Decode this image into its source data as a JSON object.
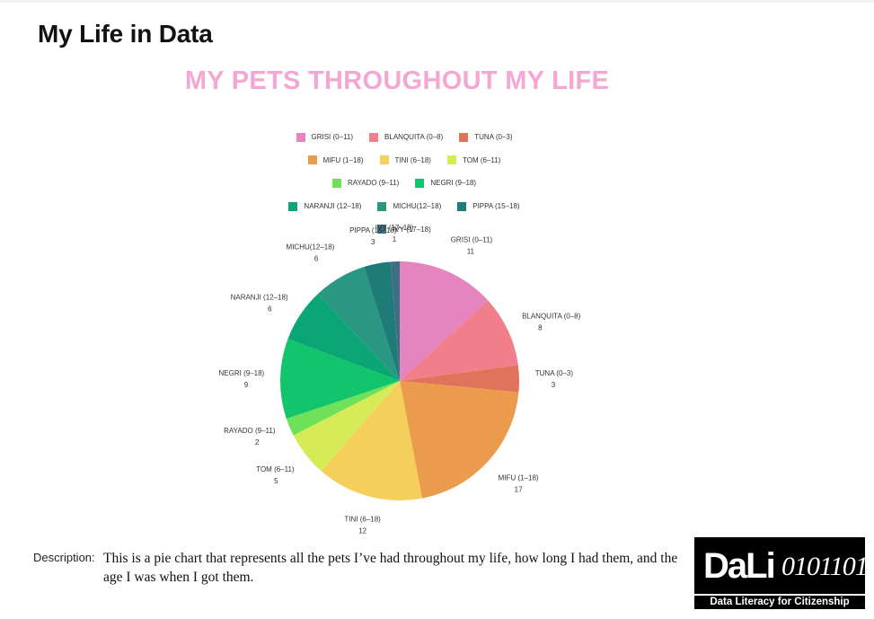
{
  "header": {
    "title": "My Life in Data"
  },
  "chart_data": {
    "type": "pie",
    "title": "MY PETS THROUGHOUT MY LIFE",
    "legend_position": "top",
    "slices": [
      {
        "label": "GRISI (0–11)",
        "value": 11,
        "color": "#e684bf"
      },
      {
        "label": "BLANQUITA (0–8)",
        "value": 8,
        "color": "#f07f8b"
      },
      {
        "label": "TUNA (0–3)",
        "value": 3,
        "color": "#e0735c"
      },
      {
        "label": "MIFU (1–18)",
        "value": 17,
        "color": "#eb9b4c"
      },
      {
        "label": "TINI (6–18)",
        "value": 12,
        "color": "#f5cf5c"
      },
      {
        "label": "TOM (6–11)",
        "value": 5,
        "color": "#d6ec57"
      },
      {
        "label": "RAYADO (9–11)",
        "value": 2,
        "color": "#6fe05a"
      },
      {
        "label": "NEGRI (9–18)",
        "value": 9,
        "color": "#12c46c"
      },
      {
        "label": "NARANJI (12–18)",
        "value": 6,
        "color": "#0aa676"
      },
      {
        "label": "MICHU(12–18)",
        "value": 6,
        "color": "#2a9782"
      },
      {
        "label": "PIPPA (15–18)",
        "value": 3,
        "color": "#1f7b78"
      },
      {
        "label": "IVY (17–18)",
        "value": 1,
        "color": "#3c6e85"
      }
    ]
  },
  "description": {
    "label": "Description:",
    "text": "This is a pie chart that represents all the pets I’ve had throughout my life, how long I had them, and the age I was when I got them."
  },
  "logo": {
    "word": "DaLi",
    "digits": "0101101",
    "tagline": "Data Literacy for Citizenship"
  }
}
